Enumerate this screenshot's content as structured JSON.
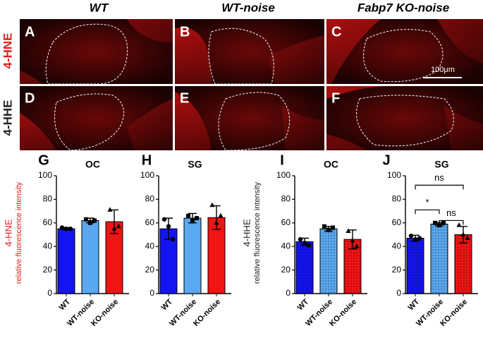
{
  "figure": {
    "columns": [
      "WT",
      "WT-noise",
      "Fabp7 KO-noise"
    ],
    "rows": [
      "4-HNE",
      "4-HHE"
    ],
    "panels": [
      "A",
      "B",
      "C",
      "D",
      "E",
      "F"
    ],
    "scale_bar": "100μm"
  },
  "chart_data": [
    {
      "type": "bar",
      "panel": "G",
      "title": "OC",
      "row_label": "4-HNE",
      "ylabel": "relative fluorescence intensity",
      "label_color": "#e0201c",
      "categories": [
        "WT",
        "WT-noise",
        "KO-noise"
      ],
      "colors": [
        "#1414f0",
        "#5aa8f0",
        "#f01414"
      ],
      "pattern": "none",
      "values": [
        55,
        62,
        61
      ],
      "errors": [
        1,
        2,
        10
      ],
      "points": [
        [
          56,
          55,
          55
        ],
        [
          63,
          60,
          62
        ],
        [
          71,
          55,
          57
        ]
      ],
      "ylim": [
        0,
        100
      ],
      "yticks": [
        0,
        20,
        40,
        60,
        80,
        100
      ]
    },
    {
      "type": "bar",
      "panel": "H",
      "title": "SG",
      "categories": [
        "WT",
        "WT-noise",
        "KO-noise"
      ],
      "colors": [
        "#1414f0",
        "#5aa8f0",
        "#f01414"
      ],
      "pattern": "none",
      "values": [
        55,
        64,
        64.5
      ],
      "errors": [
        9,
        4,
        10
      ],
      "points": [
        [
          63,
          57,
          46
        ],
        [
          66,
          62,
          64
        ],
        [
          75,
          60,
          66
        ]
      ],
      "ylim": [
        0,
        100
      ],
      "yticks": [
        0,
        20,
        40,
        60,
        80,
        100
      ]
    },
    {
      "type": "bar",
      "panel": "I",
      "title": "OC",
      "row_label": "4-HHE",
      "ylabel": "relative fluorescence intensity",
      "label_color": "#222222",
      "categories": [
        "WT",
        "WT-noise",
        "KO-noise"
      ],
      "colors": [
        "#1414f0",
        "#5aa8f0",
        "#f01414"
      ],
      "pattern": "dots",
      "values": [
        44,
        55,
        46
      ],
      "errors": [
        3,
        2,
        8
      ],
      "points": [
        [
          46,
          43,
          41
        ],
        [
          57,
          54,
          56
        ],
        [
          53,
          45,
          40
        ]
      ],
      "ylim": [
        0,
        100
      ],
      "yticks": [
        0,
        20,
        40,
        60,
        80,
        100
      ]
    },
    {
      "type": "bar",
      "panel": "J",
      "title": "SG",
      "categories": [
        "WT",
        "WT-noise",
        "KO-noise"
      ],
      "colors": [
        "#1414f0",
        "#5aa8f0",
        "#f01414"
      ],
      "pattern": "dots",
      "values": [
        47,
        59,
        50
      ],
      "errors": [
        2.5,
        1.5,
        7
      ],
      "points": [
        [
          49,
          46,
          47
        ],
        [
          60,
          58,
          60
        ],
        [
          58,
          50,
          47
        ]
      ],
      "ylim": [
        0,
        100
      ],
      "yticks": [
        0,
        20,
        40,
        60,
        80,
        100
      ],
      "annotations": [
        "ns",
        "*",
        "ns"
      ]
    }
  ]
}
